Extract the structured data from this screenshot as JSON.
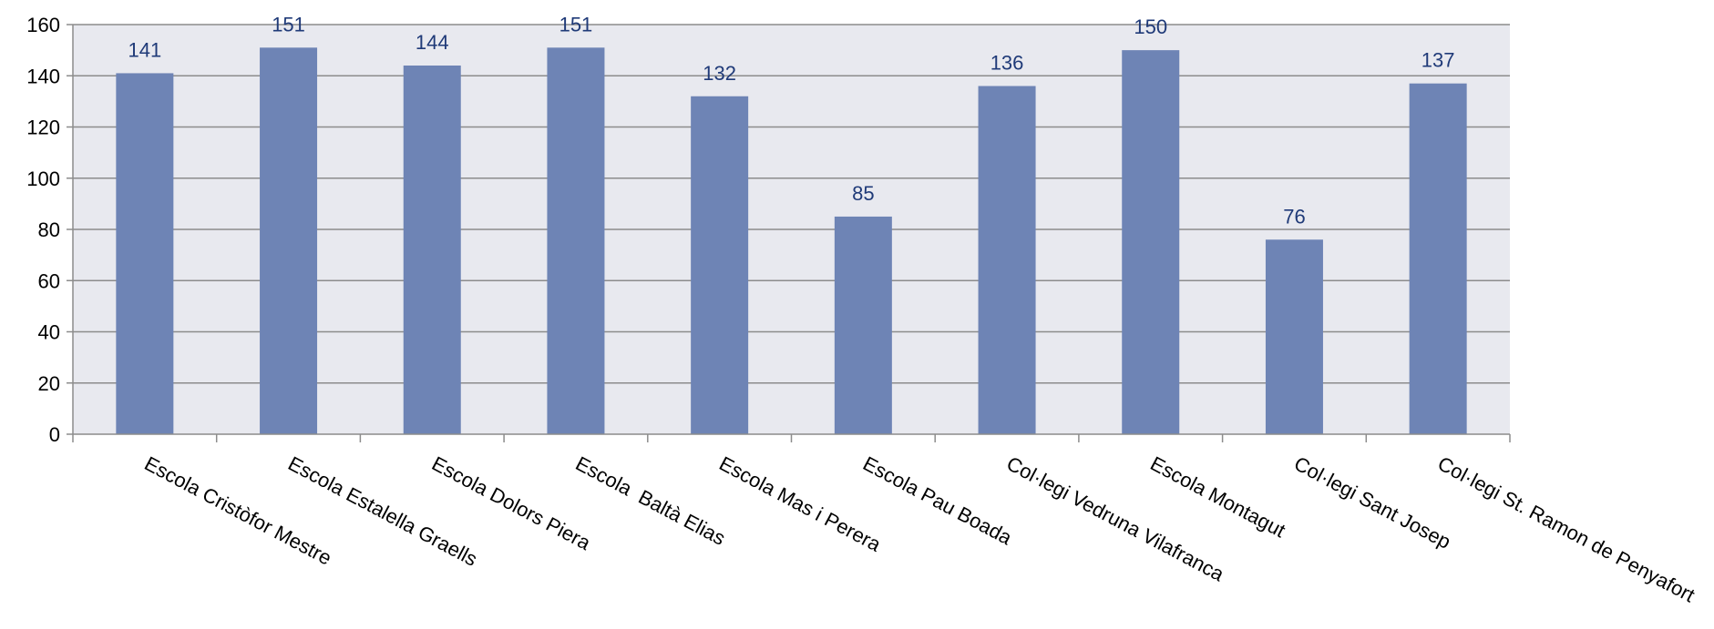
{
  "chart_data": {
    "type": "bar",
    "title": "",
    "xlabel": "",
    "ylabel": "",
    "categories": [
      "Escola Cristòfor Mestre",
      "Escola Estalella Graells",
      "Escola Dolors Piera",
      "Escola  Baltà Elias",
      "Escola Mas i Perera",
      "Escola Pau Boada",
      "Col·legi Vedruna Vilafranca",
      "Escola Montagut",
      "Col·legi Sant Josep",
      "Col·legi St. Ramon de Penyafort"
    ],
    "values": [
      141,
      151,
      144,
      151,
      132,
      85,
      136,
      150,
      76,
      137
    ],
    "ylim": [
      0,
      160
    ],
    "yticks": [
      0,
      20,
      40,
      60,
      80,
      100,
      120,
      140,
      160
    ],
    "grid": true,
    "legend": "none",
    "data_labels": true,
    "colors": {
      "bar": "#6e84b5",
      "plot_background": "#e8e9ef",
      "gridline": "#8c8c8c",
      "data_label": "#1f3a78",
      "axis": "#8c8c8c"
    }
  }
}
